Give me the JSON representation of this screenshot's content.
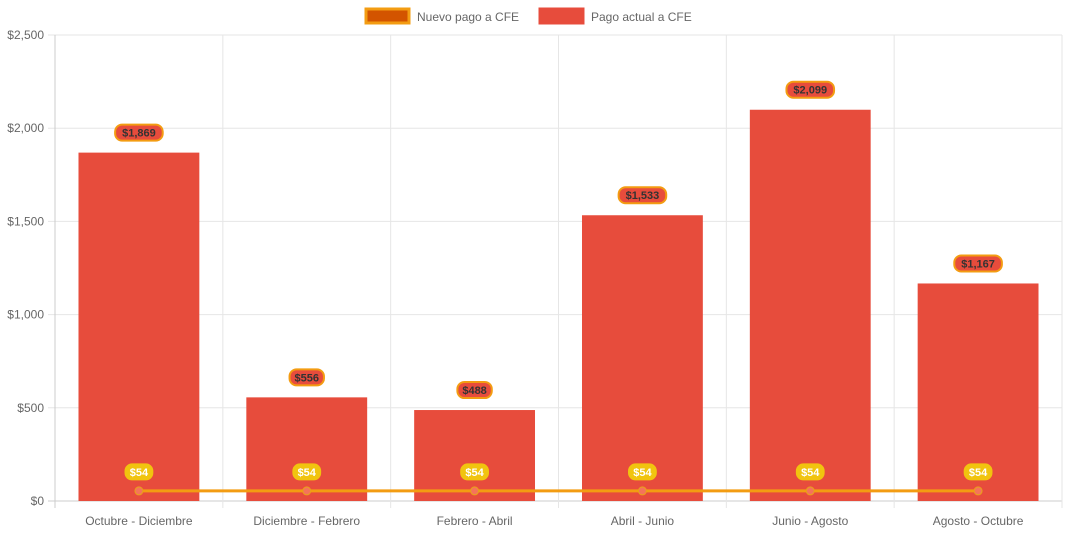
{
  "chart_data": {
    "type": "bar",
    "categories": [
      "Octubre - Diciembre",
      "Diciembre - Febrero",
      "Febrero - Abril",
      "Abril - Junio",
      "Junio - Agosto",
      "Agosto - Octubre"
    ],
    "series": [
      {
        "name": "Nuevo pago a CFE",
        "type": "line",
        "values": [
          54,
          54,
          54,
          54,
          54,
          54
        ],
        "labels": [
          "$54",
          "$54",
          "$54",
          "$54",
          "$54",
          "$54"
        ],
        "color": "#f39c12",
        "border_color": "#e8a317",
        "point_color": "#f5735a",
        "label_bg": "#f1c40f",
        "label_text": "#ffffff"
      },
      {
        "name": "Pago actual a CFE",
        "type": "bar",
        "values": [
          1869,
          556,
          488,
          1533,
          2099,
          1167
        ],
        "labels": [
          "$1,869",
          "$556",
          "$488",
          "$1,533",
          "$2,099",
          "$1,167"
        ],
        "color": "#e74c3c",
        "label_bg": "#e74c3c",
        "label_border": "#f39c12",
        "label_text": "#333333"
      }
    ],
    "y_ticks": [
      "$0",
      "$500",
      "$1,000",
      "$1,500",
      "$2,000",
      "$2,500"
    ],
    "ylim": [
      0,
      2500
    ],
    "legend": {
      "position": "top",
      "items": [
        {
          "label": "Nuevo pago a CFE",
          "fill": "#d35400",
          "border": "#f39c12"
        },
        {
          "label": "Pago actual a CFE",
          "fill": "#e74c3c",
          "border": "#e74c3c"
        }
      ]
    },
    "grid": true
  }
}
